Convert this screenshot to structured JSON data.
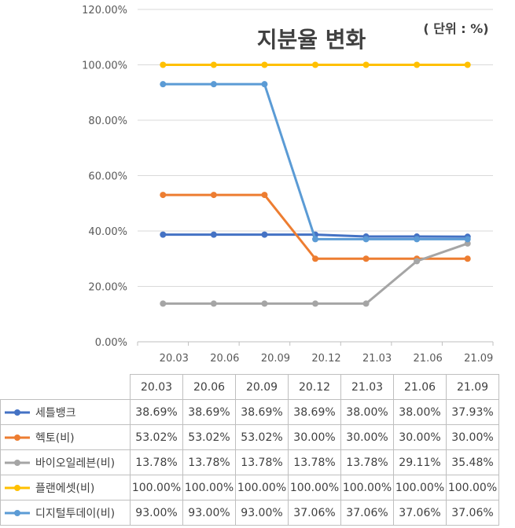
{
  "chart_data": {
    "type": "line",
    "title": "지분율 변화",
    "unit_note": "( 단위 : %)",
    "categories": [
      "20.03",
      "20.06",
      "20.09",
      "20.12",
      "21.03",
      "21.06",
      "21.09"
    ],
    "y_ticks": [
      "0.00%",
      "20.00%",
      "40.00%",
      "60.00%",
      "80.00%",
      "100.00%",
      "120.00%"
    ],
    "ylim": [
      0,
      120
    ],
    "grid": true,
    "legend": "data-table-below",
    "series": [
      {
        "name": "세틀뱅크",
        "color": "#4472C4",
        "values": [
          38.69,
          38.69,
          38.69,
          38.69,
          38.0,
          38.0,
          37.93
        ],
        "labels": [
          "38.69%",
          "38.69%",
          "38.69%",
          "38.69%",
          "38.00%",
          "38.00%",
          "37.93%"
        ]
      },
      {
        "name": "헥토(비)",
        "color": "#ED7D31",
        "values": [
          53.02,
          53.02,
          53.02,
          30.0,
          30.0,
          30.0,
          30.0
        ],
        "labels": [
          "53.02%",
          "53.02%",
          "53.02%",
          "30.00%",
          "30.00%",
          "30.00%",
          "30.00%"
        ]
      },
      {
        "name": "바이오일레븐(비)",
        "color": "#A5A5A5",
        "values": [
          13.78,
          13.78,
          13.78,
          13.78,
          13.78,
          29.11,
          35.48
        ],
        "labels": [
          "13.78%",
          "13.78%",
          "13.78%",
          "13.78%",
          "13.78%",
          "29.11%",
          "35.48%"
        ]
      },
      {
        "name": "플랜에셋(비)",
        "color": "#FFC000",
        "values": [
          100,
          100,
          100,
          100,
          100,
          100,
          100
        ],
        "labels": [
          "100.00%",
          "100.00%",
          "100.00%",
          "100.00%",
          "100.00%",
          "100.00%",
          "100.00%"
        ]
      },
      {
        "name": "디지털투데이(비)",
        "color": "#5B9BD5",
        "values": [
          93.0,
          93.0,
          93.0,
          37.06,
          37.06,
          37.06,
          37.06
        ],
        "labels": [
          "93.00%",
          "93.00%",
          "93.00%",
          "37.06%",
          "37.06%",
          "37.06%",
          "37.06%"
        ]
      }
    ]
  }
}
